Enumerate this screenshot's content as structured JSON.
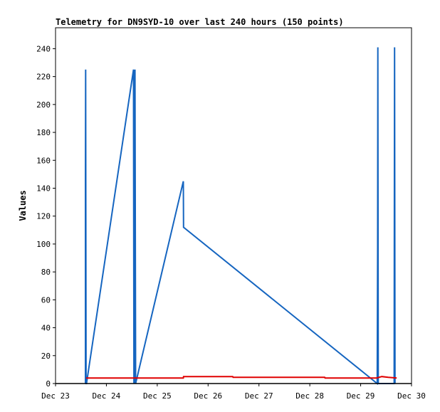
{
  "chart_data": {
    "type": "line",
    "title": "Telemetry for DN9SYD-10 over last 240 hours (150 points)",
    "ylabel": "Values",
    "xlabel": "",
    "xlim": [
      0,
      168
    ],
    "ylim": [
      0,
      255
    ],
    "x_unit": "hours since Dec 23 00:00",
    "x_ticks": [
      {
        "label": "Dec 23",
        "value": 0
      },
      {
        "label": "Dec 24",
        "value": 24
      },
      {
        "label": "Dec 25",
        "value": 48
      },
      {
        "label": "Dec 26",
        "value": 72
      },
      {
        "label": "Dec 27",
        "value": 96
      },
      {
        "label": "Dec 28",
        "value": 120
      },
      {
        "label": "Dec 29",
        "value": 144
      },
      {
        "label": "Dec 30",
        "value": 168
      }
    ],
    "y_ticks": [
      0,
      20,
      40,
      60,
      80,
      100,
      120,
      140,
      160,
      180,
      200,
      220,
      240
    ],
    "grid": false,
    "legend": "none",
    "series": [
      {
        "color": "#1565c0",
        "points": [
          [
            14.1,
            0
          ],
          [
            14.1,
            145
          ],
          [
            14.2,
            225
          ],
          [
            14.4,
            0
          ],
          [
            14.6,
            0
          ],
          [
            36.8,
            225
          ],
          [
            37.0,
            0
          ],
          [
            37.2,
            225
          ],
          [
            37.3,
            0
          ],
          [
            37.5,
            225
          ],
          [
            37.8,
            0
          ],
          [
            60.3,
            145
          ],
          [
            60.4,
            112
          ],
          [
            151.8,
            0
          ],
          [
            152.0,
            97
          ],
          [
            152.1,
            241
          ],
          [
            152.3,
            0
          ],
          [
            159.8,
            0
          ],
          [
            159.9,
            128
          ],
          [
            160.0,
            241
          ],
          [
            160.2,
            0
          ]
        ]
      },
      {
        "color": "#e00000",
        "points": [
          [
            14.4,
            4
          ],
          [
            60.3,
            4
          ],
          [
            60.4,
            5
          ],
          [
            83.6,
            5
          ],
          [
            83.8,
            4.5
          ],
          [
            127.0,
            4.5
          ],
          [
            127.2,
            4
          ],
          [
            151.5,
            4
          ],
          [
            154.0,
            5
          ],
          [
            157.0,
            4.5
          ],
          [
            161.0,
            4
          ]
        ]
      },
      {
        "color": "#000000",
        "points": [
          [
            0,
            0
          ],
          [
            168,
            0
          ]
        ]
      }
    ]
  }
}
